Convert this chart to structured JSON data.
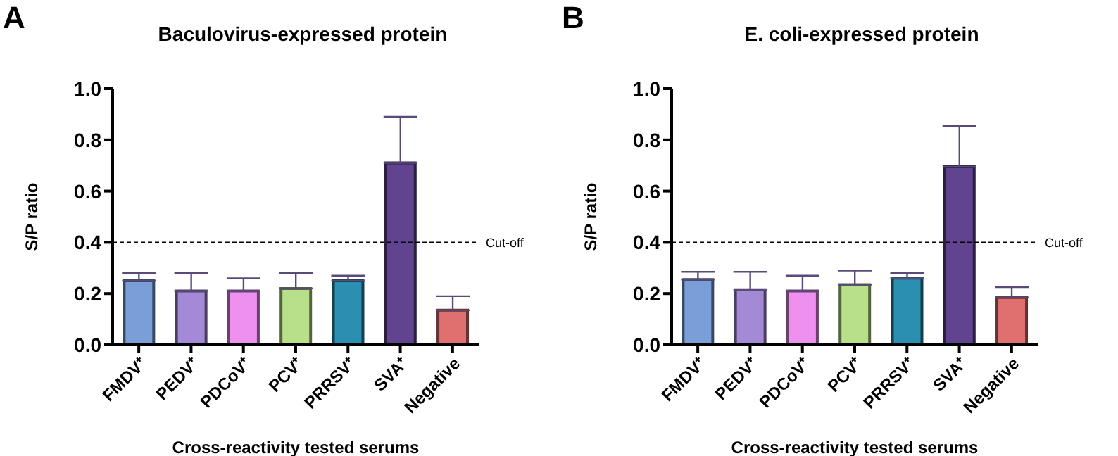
{
  "chart_data": [
    {
      "type": "bar",
      "title": "Baculovirus-expressed protein",
      "xlabel": "Cross-reactivity tested serums",
      "ylabel": "S/P ratio",
      "annotations": [
        "A"
      ],
      "categories": [
        "FMDV⁺",
        "PEDV⁺",
        "PDCoV⁺",
        "PCV⁺",
        "PRRSV⁺",
        "SVA⁺",
        "Negative"
      ],
      "values": [
        0.25,
        0.21,
        0.21,
        0.22,
        0.25,
        0.71,
        0.135
      ],
      "errors": [
        [
          0.25,
          0.28
        ],
        [
          0.21,
          0.28
        ],
        [
          0.21,
          0.26
        ],
        [
          0.22,
          0.28
        ],
        [
          0.25,
          0.27
        ],
        [
          0.71,
          0.89
        ],
        [
          0.135,
          0.19
        ]
      ],
      "colors": [
        "#7a9fd8",
        "#a48ad6",
        "#ee90ee",
        "#b8e08a",
        "#2a8fb0",
        "#614390",
        "#e07070"
      ],
      "ylim": [
        0,
        1
      ],
      "yticks": [
        {
          "value": 0,
          "label": "0.0"
        },
        {
          "value": 0.2,
          "label": "0.2"
        },
        {
          "value": 0.4,
          "label": "0.4"
        },
        {
          "value": 0.6,
          "label": "0.6"
        },
        {
          "value": 0.8,
          "label": "0.8"
        },
        {
          "value": 1,
          "label": "1.0"
        }
      ],
      "ref_lines": [
        {
          "axis": "y",
          "value": 0.4,
          "label": "Cut-off",
          "color": "#000000",
          "line_style": "dashed"
        }
      ],
      "grid": false,
      "legend": false
    },
    {
      "type": "bar",
      "title": "E. coli-expressed protein",
      "xlabel": "Cross-reactivity tested serums",
      "ylabel": "S/P ratio",
      "annotations": [
        "B"
      ],
      "categories": [
        "FMDV⁺",
        "PEDV⁺",
        "PDCoV⁺",
        "PCV⁺",
        "PRRSV⁺",
        "SVA⁺",
        "Negative"
      ],
      "values": [
        0.255,
        0.215,
        0.21,
        0.235,
        0.26,
        0.695,
        0.185
      ],
      "errors": [
        [
          0.255,
          0.285
        ],
        [
          0.215,
          0.285
        ],
        [
          0.21,
          0.27
        ],
        [
          0.235,
          0.29
        ],
        [
          0.26,
          0.28
        ],
        [
          0.695,
          0.855
        ],
        [
          0.185,
          0.225
        ]
      ],
      "colors": [
        "#7a9fd8",
        "#a48ad6",
        "#ee90ee",
        "#b8e08a",
        "#2a8fb0",
        "#614390",
        "#e07070"
      ],
      "ylim": [
        0,
        1
      ],
      "yticks": [
        {
          "value": 0,
          "label": "0.0"
        },
        {
          "value": 0.2,
          "label": "0.2"
        },
        {
          "value": 0.4,
          "label": "0.4"
        },
        {
          "value": 0.6,
          "label": "0.6"
        },
        {
          "value": 0.8,
          "label": "0.8"
        },
        {
          "value": 1,
          "label": "1.0"
        }
      ],
      "ref_lines": [
        {
          "axis": "y",
          "value": 0.4,
          "label": "Cut-off",
          "color": "#000000",
          "line_style": "dashed"
        }
      ],
      "grid": false,
      "legend": false
    }
  ]
}
